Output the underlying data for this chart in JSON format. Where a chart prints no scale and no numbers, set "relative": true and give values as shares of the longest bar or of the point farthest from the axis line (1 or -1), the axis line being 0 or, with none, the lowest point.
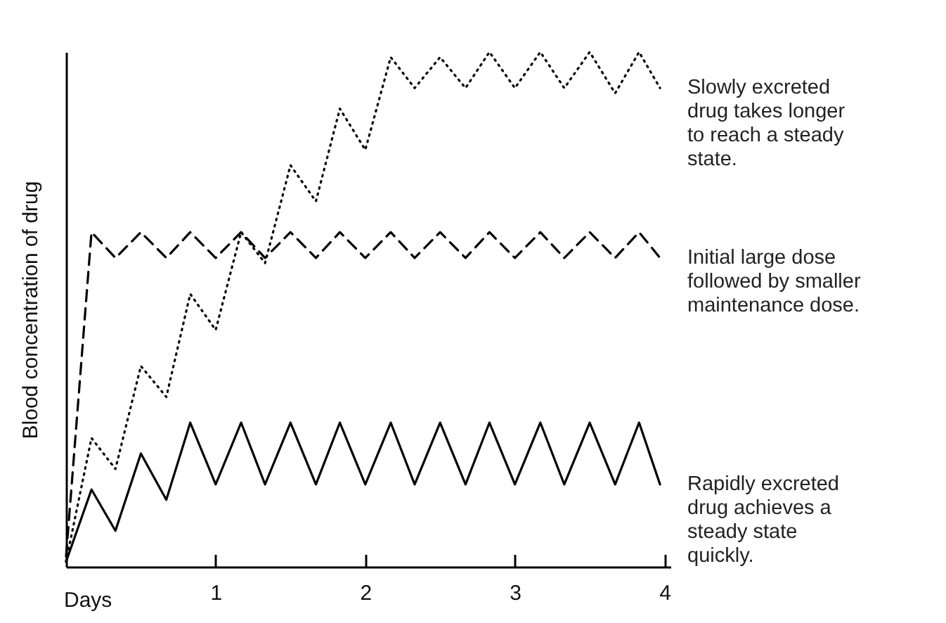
{
  "chart_data": {
    "type": "line",
    "relative": true,
    "ylabel": "Blood concentration of drug",
    "xlabel": "Days",
    "xlim": [
      0,
      4.04
    ],
    "xticks": [
      1,
      2,
      3,
      4
    ],
    "grid": false,
    "marker": "none",
    "x": [
      0,
      0.17,
      0.33,
      0.5,
      0.67,
      0.83,
      1,
      1.17,
      1.33,
      1.5,
      1.67,
      1.83,
      2,
      2.17,
      2.33,
      2.5,
      2.67,
      2.83,
      3,
      3.17,
      3.33,
      3.5,
      3.67,
      3.83,
      3.97
    ],
    "series": [
      {
        "color": "#000000",
        "line_style": "dotted",
        "values": [
          0.01,
          0.25,
          0.19,
          0.39,
          0.33,
          0.53,
          0.46,
          0.65,
          0.59,
          0.78,
          0.71,
          0.89,
          0.81,
          0.99,
          0.93,
          0.99,
          0.93,
          1.0,
          0.93,
          1.0,
          0.93,
          1.0,
          0.92,
          1.0,
          0.93
        ]
      },
      {
        "color": "#000000",
        "line_style": "dashed",
        "values": [
          0.02,
          0.65,
          0.6,
          0.65,
          0.6,
          0.65,
          0.6,
          0.65,
          0.6,
          0.65,
          0.6,
          0.65,
          0.6,
          0.65,
          0.6,
          0.65,
          0.6,
          0.65,
          0.6,
          0.65,
          0.6,
          0.65,
          0.6,
          0.65,
          0.6
        ]
      },
      {
        "color": "#000000",
        "line_style": "solid",
        "values": [
          0.01,
          0.15,
          0.07,
          0.22,
          0.13,
          0.28,
          0.16,
          0.28,
          0.16,
          0.28,
          0.16,
          0.28,
          0.16,
          0.28,
          0.16,
          0.28,
          0.16,
          0.28,
          0.16,
          0.28,
          0.16,
          0.28,
          0.16,
          0.28,
          0.16
        ]
      }
    ],
    "annotations": [
      "Slowly excreted\ndrug takes longer\nto reach a steady\nstate.",
      "Initial large dose\nfollowed by smaller\nmaintenance dose.",
      "Rapidly excreted\ndrug achieves a\nsteady state\nquickly."
    ]
  }
}
